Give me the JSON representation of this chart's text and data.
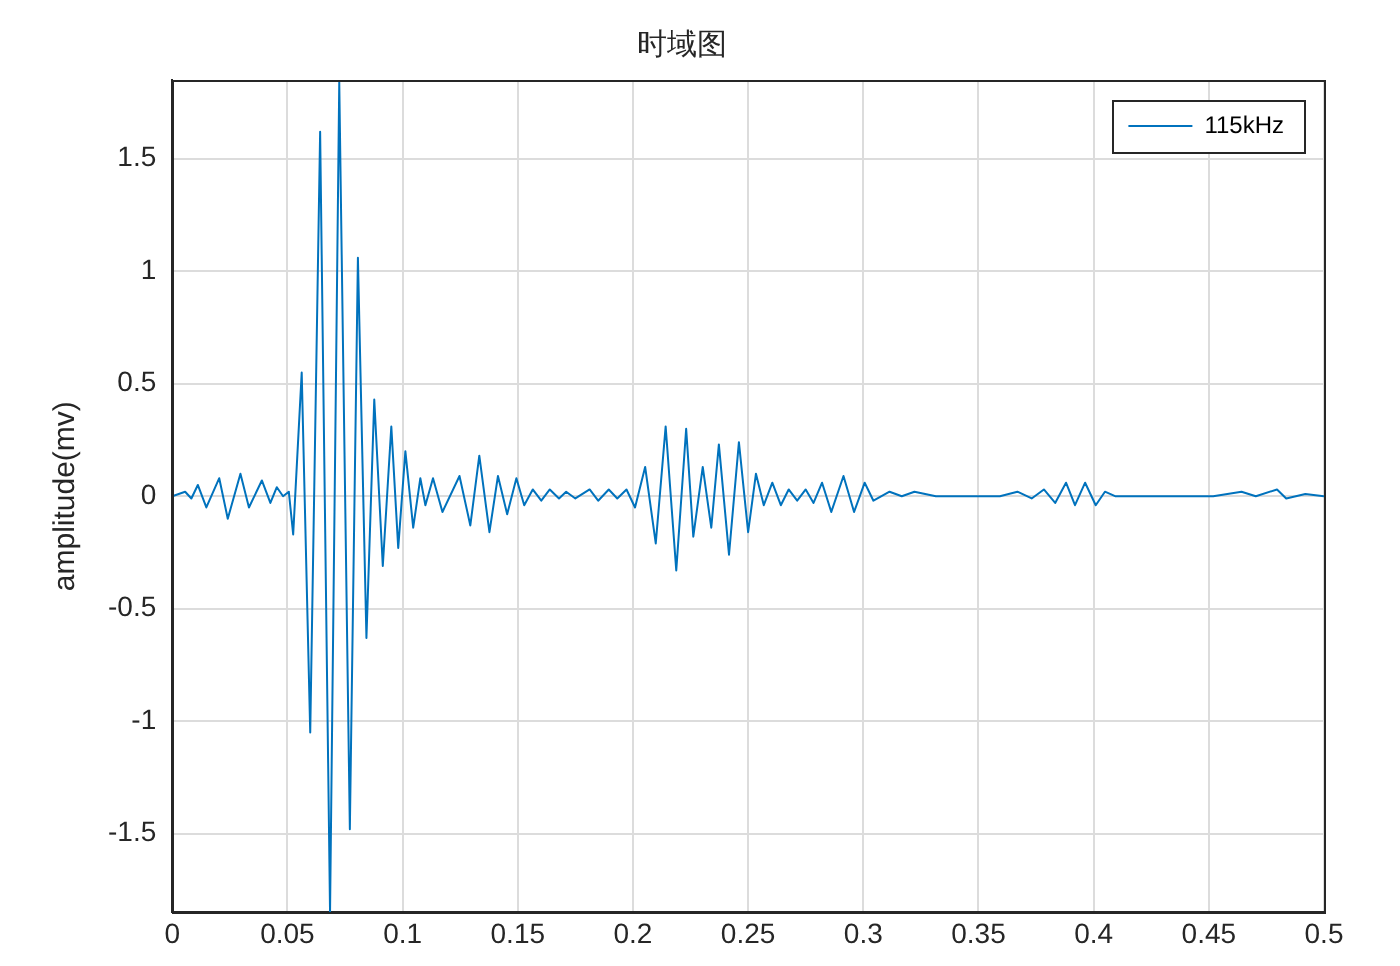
{
  "chart_data": {
    "type": "line",
    "title": "时域图",
    "ylabel": "amplitude(mv)",
    "x": [
      0,
      0.0056,
      0.0083,
      0.0111,
      0.0148,
      0.0204,
      0.0241,
      0.0296,
      0.0333,
      0.0389,
      0.0426,
      0.0454,
      0.0481,
      0.0506,
      0.0525,
      0.0562,
      0.0599,
      0.0642,
      0.0685,
      0.0725,
      0.0771,
      0.0806,
      0.0843,
      0.0877,
      0.0914,
      0.0951,
      0.0981,
      0.1012,
      0.1046,
      0.1077,
      0.1099,
      0.1132,
      0.1173,
      0.1247,
      0.1294,
      0.1333,
      0.1377,
      0.1414,
      0.1454,
      0.1494,
      0.1528,
      0.1565,
      0.1602,
      0.1639,
      0.1679,
      0.171,
      0.175,
      0.1812,
      0.1849,
      0.1895,
      0.1932,
      0.1972,
      0.2009,
      0.2053,
      0.2099,
      0.2142,
      0.2188,
      0.2231,
      0.2262,
      0.2303,
      0.234,
      0.2373,
      0.2417,
      0.246,
      0.25,
      0.2534,
      0.2568,
      0.2605,
      0.2642,
      0.2676,
      0.2713,
      0.275,
      0.2784,
      0.2821,
      0.2861,
      0.2914,
      0.296,
      0.3006,
      0.3044,
      0.3114,
      0.3167,
      0.3222,
      0.3315,
      0.3593,
      0.3669,
      0.3731,
      0.3784,
      0.3833,
      0.388,
      0.3919,
      0.3963,
      0.4009,
      0.4049,
      0.4093,
      0.4519,
      0.4642,
      0.4704,
      0.4796,
      0.4836,
      0.4919,
      0.5
    ],
    "series": [
      {
        "name": "115kHz",
        "color": "#0072bd",
        "values": [
          0,
          0.02,
          -0.01,
          0.05,
          -0.05,
          0.08,
          -0.1,
          0.1,
          -0.05,
          0.07,
          -0.03,
          0.04,
          0,
          0.02,
          -0.17,
          0.55,
          -1.05,
          1.62,
          -1.85,
          1.84,
          -1.48,
          1.06,
          -0.63,
          0.43,
          -0.31,
          0.31,
          -0.23,
          0.2,
          -0.14,
          0.08,
          -0.04,
          0.08,
          -0.07,
          0.09,
          -0.13,
          0.18,
          -0.16,
          0.09,
          -0.08,
          0.08,
          -0.04,
          0.03,
          -0.02,
          0.03,
          -0.01,
          0.02,
          -0.01,
          0.03,
          -0.02,
          0.03,
          -0.01,
          0.03,
          -0.05,
          0.13,
          -0.21,
          0.31,
          -0.33,
          0.3,
          -0.18,
          0.13,
          -0.14,
          0.23,
          -0.26,
          0.24,
          -0.16,
          0.1,
          -0.04,
          0.06,
          -0.04,
          0.03,
          -0.02,
          0.03,
          -0.03,
          0.06,
          -0.07,
          0.09,
          -0.07,
          0.06,
          -0.02,
          0.02,
          0,
          0.02,
          0,
          0,
          0.02,
          -0.01,
          0.03,
          -0.03,
          0.06,
          -0.04,
          0.06,
          -0.04,
          0.02,
          0,
          0,
          0.02,
          0,
          0.03,
          -0.01,
          0.01,
          0
        ]
      }
    ],
    "xlim": [
      0,
      0.5
    ],
    "xticks": [
      0,
      0.05,
      0.1,
      0.15,
      0.2,
      0.25,
      0.3,
      0.35,
      0.4,
      0.45,
      0.5
    ],
    "ylim": [
      -1.85,
      1.85
    ],
    "yticks": [
      -1.5,
      -1,
      -0.5,
      0,
      0.5,
      1,
      1.5
    ],
    "grid": true,
    "legend": "top right",
    "marker": "none",
    "line_style": "solid"
  }
}
